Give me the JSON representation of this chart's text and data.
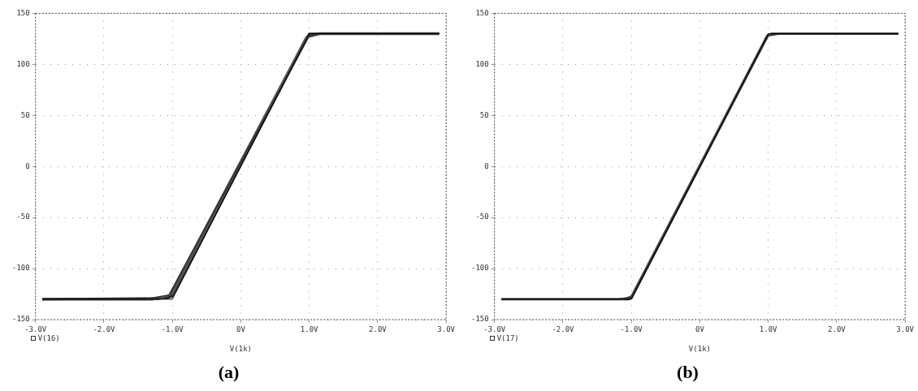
{
  "chart_data": [
    {
      "type": "line",
      "title": "(a)",
      "xlabel": "V(1k)",
      "annotations": [
        "V(16)"
      ],
      "xlim": [
        -3,
        3
      ],
      "ylim": [
        -150,
        150
      ],
      "xticks": [
        {
          "value": -3,
          "label": "-3.0V"
        },
        {
          "value": -2,
          "label": "-2.0V"
        },
        {
          "value": -1,
          "label": "-1.0V"
        },
        {
          "value": 0,
          "label": "0V"
        },
        {
          "value": 1,
          "label": "1.0V"
        },
        {
          "value": 2,
          "label": "2.0V"
        },
        {
          "value": 3,
          "label": "3.0V"
        }
      ],
      "yticks": [
        -150,
        -100,
        -50,
        0,
        50,
        100,
        150
      ],
      "grid": true,
      "legend": false,
      "marker": "none",
      "line_style": "solid",
      "series": [
        {
          "color": "#000000",
          "x": [
            -2.9,
            -1.0,
            1.0,
            2.9
          ],
          "values": [
            -130,
            -130,
            130,
            130
          ]
        },
        {
          "color": "#333333",
          "x": [
            -2.9,
            -1.4,
            -1.05,
            1.0,
            1.1,
            2.9
          ],
          "values": [
            -130,
            -130,
            -126,
            128,
            130,
            130
          ]
        },
        {
          "color": "#555555",
          "x": [
            -2.9,
            -1.2,
            -1.0,
            0.95,
            1.05,
            2.9
          ],
          "values": [
            -130,
            -130,
            -125,
            126,
            130,
            130
          ]
        },
        {
          "color": "#222222",
          "x": [
            -2.9,
            -1.1,
            -1.0,
            1.0,
            2.9
          ],
          "values": [
            -130,
            -129,
            -127,
            130,
            130
          ]
        },
        {
          "color": "#444444",
          "x": [
            -2.9,
            -1.3,
            -1.05,
            0.97,
            1.15,
            2.9
          ],
          "values": [
            -130,
            -130,
            -128,
            127,
            130,
            130
          ]
        }
      ]
    },
    {
      "type": "line",
      "title": "(b)",
      "xlabel": "V(1k)",
      "annotations": [
        "V(17)"
      ],
      "xlim": [
        -3,
        3
      ],
      "ylim": [
        -150,
        150
      ],
      "xticks": [
        {
          "value": -3,
          "label": "-3.0V"
        },
        {
          "value": -2,
          "label": "-2.0V"
        },
        {
          "value": -1,
          "label": "-1.0V"
        },
        {
          "value": 0,
          "label": "0V"
        },
        {
          "value": 1,
          "label": "1.0V"
        },
        {
          "value": 2,
          "label": "2.0V"
        },
        {
          "value": 3,
          "label": "3.0V"
        }
      ],
      "yticks": [
        -150,
        -100,
        -50,
        0,
        50,
        100,
        150
      ],
      "grid": true,
      "legend": false,
      "marker": "none",
      "line_style": "solid",
      "series": [
        {
          "color": "#000000",
          "x": [
            -2.9,
            -1.0,
            1.0,
            2.9
          ],
          "values": [
            -130,
            -130,
            130,
            130
          ]
        },
        {
          "color": "#333333",
          "x": [
            -2.9,
            -1.2,
            -1.0,
            1.0,
            1.2,
            2.9
          ],
          "values": [
            -130,
            -130,
            -128,
            128,
            130,
            130
          ]
        },
        {
          "color": "#555555",
          "x": [
            -2.9,
            -1.1,
            -1.0,
            0.98,
            1.1,
            2.9
          ],
          "values": [
            -130,
            -130,
            -127,
            128,
            130,
            130
          ]
        },
        {
          "color": "#222222",
          "x": [
            -2.9,
            -1.05,
            -1.0,
            1.0,
            1.05,
            2.9
          ],
          "values": [
            -130,
            -130,
            -129,
            129,
            130,
            130
          ]
        }
      ]
    }
  ]
}
